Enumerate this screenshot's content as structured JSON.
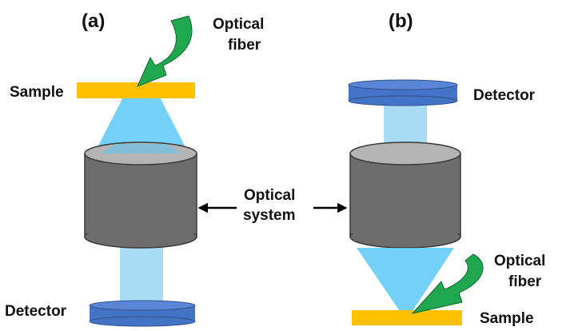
{
  "panel_a": {
    "tag": "(a)",
    "fiber_label_line1": "Optical",
    "fiber_label_line2": "fiber",
    "sample_label": "Sample",
    "detector_label": "Detector"
  },
  "panel_b": {
    "tag": "(b)",
    "fiber_label_line1": "Optical",
    "fiber_label_line2": "fiber",
    "sample_label": "Sample",
    "detector_label": "Detector"
  },
  "center": {
    "system_label_line1": "Optical",
    "system_label_line2": "system"
  },
  "colors": {
    "sample": "#FFC000",
    "detector": "#4472C4",
    "cylinder_body": "#6D6D6D",
    "cylinder_top": "#B4B4B4",
    "light": "#5BC8F5",
    "fiber": "#1FA84F"
  },
  "icons": {
    "fiber": "curved-arrow-icon",
    "pointer": "double-arrow-icon"
  }
}
